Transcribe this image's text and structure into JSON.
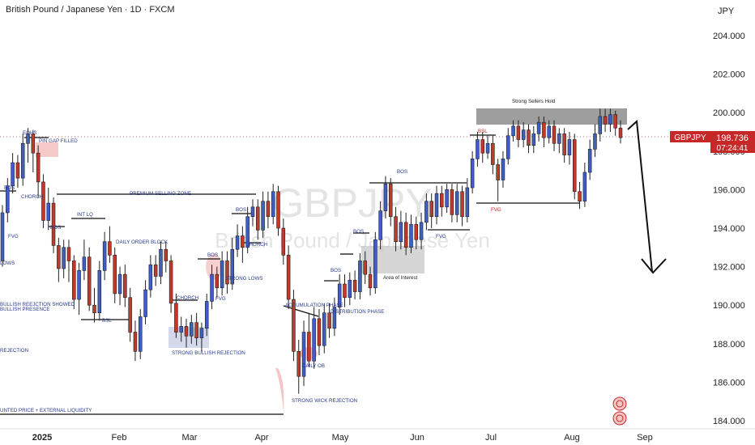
{
  "header": {
    "title": "British Pound / Japanese Yen · 1D · FXCM",
    "currency": "JPY"
  },
  "watermark": {
    "symbol": "GBPJPY",
    "name": "British Pound / Japanese Yen",
    "tf": "1D"
  },
  "price_tag": {
    "symbol": "GBPJPY",
    "price": "198.736",
    "countdown": "07:24:41"
  },
  "colors": {
    "up": "#3f5fc6",
    "down": "#c0392b",
    "annotation_text": "#2a3a8f",
    "red_text": "#d02020",
    "tag_bg": "#c62828",
    "gray_zone": "#8d8d8d",
    "interest_zone": "#c8c8c8",
    "blue_zone": "#c9cfe6",
    "pink_zone": "#f6c4c4"
  },
  "chart_data": {
    "type": "candlestick",
    "symbol": "GBPJPY",
    "timeframe": "1D",
    "source": "FXCM",
    "ylim": [
      183.6,
      206.2
    ],
    "y_ticks": [
      "204.000",
      "202.000",
      "200.000",
      "198.000",
      "196.000",
      "194.000",
      "192.000",
      "190.000",
      "188.000",
      "186.000",
      "184.000"
    ],
    "x_ticks": [
      "2025",
      "Feb",
      "Mar",
      "Apr",
      "May",
      "Jun",
      "Jul",
      "Aug",
      "Sep"
    ],
    "last_price": 198.736,
    "candles": [
      [
        192.3,
        194.8,
        195.2,
        192.0
      ],
      [
        194.8,
        196.2,
        196.6,
        194.3
      ],
      [
        196.2,
        197.4,
        197.9,
        195.8
      ],
      [
        197.4,
        196.6,
        197.8,
        196.1
      ],
      [
        196.6,
        198.4,
        198.9,
        196.2
      ],
      [
        198.4,
        198.9,
        199.2,
        197.4
      ],
      [
        198.9,
        197.9,
        199.1,
        196.9
      ],
      [
        197.9,
        196.4,
        198.3,
        195.6
      ],
      [
        196.4,
        194.4,
        196.8,
        194.0
      ],
      [
        194.4,
        195.3,
        196.1,
        193.9
      ],
      [
        195.3,
        193.1,
        195.6,
        192.7
      ],
      [
        193.1,
        191.9,
        193.5,
        191.2
      ],
      [
        191.9,
        193.0,
        193.4,
        191.4
      ],
      [
        193.0,
        192.3,
        193.4,
        191.2
      ],
      [
        192.3,
        190.3,
        192.6,
        189.8
      ],
      [
        190.3,
        191.8,
        192.2,
        189.5
      ],
      [
        191.8,
        192.5,
        193.4,
        191.3
      ],
      [
        192.5,
        190.0,
        193.0,
        189.7
      ],
      [
        190.0,
        189.6,
        190.9,
        189.1
      ],
      [
        189.6,
        191.8,
        192.3,
        189.2
      ],
      [
        191.8,
        193.3,
        193.8,
        191.3
      ],
      [
        193.3,
        192.6,
        194.1,
        192.2
      ],
      [
        192.6,
        190.6,
        193.0,
        190.1
      ],
      [
        190.6,
        191.6,
        192.0,
        190.0
      ],
      [
        191.6,
        190.4,
        192.1,
        189.9
      ],
      [
        190.4,
        188.6,
        190.9,
        188.1
      ],
      [
        188.6,
        187.6,
        189.2,
        187.1
      ],
      [
        187.6,
        189.4,
        189.8,
        187.2
      ],
      [
        189.4,
        190.8,
        191.3,
        189.0
      ],
      [
        190.8,
        192.1,
        192.6,
        190.4
      ],
      [
        192.1,
        191.5,
        192.6,
        191.0
      ],
      [
        191.5,
        192.9,
        193.3,
        191.1
      ],
      [
        192.9,
        192.3,
        193.3,
        191.7
      ],
      [
        192.3,
        190.1,
        192.6,
        189.6
      ],
      [
        190.1,
        188.6,
        190.6,
        188.3
      ],
      [
        188.6,
        188.9,
        189.4,
        188.1
      ],
      [
        188.9,
        188.4,
        189.3,
        187.8
      ],
      [
        188.4,
        189.1,
        189.5,
        188.0
      ],
      [
        189.1,
        188.3,
        189.6,
        187.9
      ],
      [
        188.3,
        188.8,
        189.1,
        187.6
      ],
      [
        188.8,
        190.2,
        190.6,
        188.4
      ],
      [
        190.2,
        191.6,
        192.1,
        189.8
      ],
      [
        191.6,
        190.9,
        192.0,
        190.4
      ],
      [
        190.9,
        192.3,
        192.8,
        190.5
      ],
      [
        192.3,
        191.1,
        192.8,
        190.6
      ],
      [
        191.1,
        192.9,
        193.5,
        190.8
      ],
      [
        192.9,
        193.6,
        194.2,
        192.5
      ],
      [
        193.6,
        193.0,
        194.1,
        192.2
      ],
      [
        193.0,
        194.6,
        195.1,
        192.7
      ],
      [
        194.6,
        195.1,
        195.5,
        194.1
      ],
      [
        195.1,
        193.9,
        195.5,
        193.4
      ],
      [
        193.9,
        195.4,
        195.9,
        193.5
      ],
      [
        195.4,
        194.6,
        195.9,
        194.0
      ],
      [
        194.6,
        195.9,
        196.3,
        194.2
      ],
      [
        195.9,
        194.0,
        196.2,
        193.6
      ],
      [
        194.0,
        192.6,
        194.5,
        192.1
      ],
      [
        192.6,
        190.3,
        193.1,
        189.8
      ],
      [
        190.3,
        187.6,
        190.8,
        187.1
      ],
      [
        187.6,
        186.3,
        188.2,
        185.4
      ],
      [
        186.3,
        188.6,
        189.2,
        185.8
      ],
      [
        188.6,
        187.1,
        189.6,
        186.8
      ],
      [
        187.1,
        189.3,
        189.9,
        186.7
      ],
      [
        189.3,
        187.9,
        189.8,
        187.4
      ],
      [
        187.9,
        189.6,
        190.1,
        187.5
      ],
      [
        189.6,
        188.8,
        190.1,
        188.3
      ],
      [
        188.8,
        189.9,
        190.4,
        188.4
      ],
      [
        189.9,
        191.1,
        191.6,
        189.5
      ],
      [
        191.1,
        190.4,
        191.6,
        189.9
      ],
      [
        190.4,
        191.3,
        191.7,
        190.0
      ],
      [
        191.3,
        190.7,
        191.8,
        190.3
      ],
      [
        190.7,
        192.3,
        192.7,
        190.3
      ],
      [
        192.3,
        191.6,
        192.8,
        191.1
      ],
      [
        191.6,
        190.9,
        192.0,
        190.5
      ],
      [
        190.9,
        193.4,
        193.8,
        190.6
      ],
      [
        193.4,
        194.9,
        195.4,
        192.9
      ],
      [
        194.9,
        196.3,
        196.7,
        194.5
      ],
      [
        196.3,
        194.6,
        196.6,
        194.1
      ],
      [
        194.6,
        193.3,
        195.1,
        192.8
      ],
      [
        193.3,
        194.3,
        194.9,
        192.9
      ],
      [
        194.3,
        193.0,
        194.8,
        192.6
      ],
      [
        193.0,
        194.2,
        194.7,
        192.7
      ],
      [
        194.2,
        193.4,
        194.6,
        192.9
      ],
      [
        193.4,
        194.3,
        194.8,
        192.9
      ],
      [
        194.3,
        195.4,
        195.8,
        193.9
      ],
      [
        195.4,
        194.6,
        195.8,
        194.0
      ],
      [
        194.6,
        195.8,
        196.2,
        194.2
      ],
      [
        195.8,
        195.1,
        196.2,
        194.6
      ],
      [
        195.1,
        196.0,
        196.3,
        194.8
      ],
      [
        196.0,
        194.7,
        196.3,
        194.3
      ],
      [
        194.7,
        195.9,
        196.3,
        194.3
      ],
      [
        195.9,
        194.6,
        196.2,
        194.1
      ],
      [
        194.6,
        196.1,
        196.6,
        194.3
      ],
      [
        196.1,
        197.6,
        198.0,
        195.8
      ],
      [
        197.6,
        198.6,
        199.0,
        197.2
      ],
      [
        198.6,
        197.9,
        199.0,
        197.4
      ],
      [
        197.9,
        198.4,
        198.8,
        197.6
      ],
      [
        198.4,
        197.3,
        198.8,
        196.8
      ],
      [
        197.3,
        196.5,
        197.6,
        195.4
      ],
      [
        196.5,
        197.6,
        198.0,
        196.1
      ],
      [
        197.6,
        198.8,
        199.2,
        197.3
      ],
      [
        198.8,
        199.3,
        199.6,
        198.5
      ],
      [
        199.3,
        198.6,
        199.6,
        198.2
      ],
      [
        198.6,
        199.1,
        199.5,
        198.2
      ],
      [
        199.1,
        198.3,
        199.4,
        197.9
      ],
      [
        198.3,
        198.9,
        199.3,
        197.9
      ],
      [
        198.9,
        199.5,
        199.8,
        198.5
      ],
      [
        199.5,
        198.7,
        199.8,
        198.2
      ],
      [
        198.7,
        199.3,
        199.6,
        198.4
      ],
      [
        199.3,
        198.4,
        199.6,
        198.0
      ],
      [
        198.4,
        198.9,
        199.2,
        197.9
      ],
      [
        198.9,
        197.8,
        199.2,
        197.4
      ],
      [
        197.8,
        198.6,
        199.0,
        197.3
      ],
      [
        198.6,
        195.9,
        198.9,
        195.5
      ],
      [
        195.9,
        195.4,
        196.4,
        195.0
      ],
      [
        195.4,
        196.9,
        197.4,
        195.1
      ],
      [
        196.9,
        198.1,
        198.6,
        196.5
      ],
      [
        198.1,
        198.9,
        199.4,
        197.7
      ],
      [
        198.9,
        199.8,
        200.2,
        198.5
      ],
      [
        199.8,
        199.4,
        200.2,
        199.0
      ],
      [
        199.4,
        199.9,
        200.2,
        199.0
      ],
      [
        199.9,
        199.2,
        200.1,
        198.8
      ],
      [
        199.2,
        198.7,
        199.6,
        198.4
      ]
    ],
    "annotations": [
      "EQHS",
      "PIN GAP FILLED",
      "BOS",
      "CHORCH",
      "FVG",
      "LOWS",
      "INT LQ",
      "BOS",
      "PREMIUM SELLING ZONE",
      "DAILY ORDER BLOCK",
      "BULLISH REEJCTION SHOWED",
      "BULLISH PRESENCE",
      "BSL",
      "REJECTION",
      "UNTED PRICE + EXTERNAL LIQUIDITY",
      "CHORCH",
      "STRONG BULLISH REJECTION",
      "BOS",
      "STRONG LOWS",
      "FVG",
      "BOS",
      "CHORCH",
      "ACCUMULATION PHASE",
      "DISTRIBUTION PHASE",
      "DAILY OB",
      "STRONG WICK REJECTION",
      "BOS",
      "BOS",
      "BOS",
      "FVG",
      "Area of Interest",
      "Strong Sellers Hold",
      "BSL",
      "FVG"
    ]
  }
}
